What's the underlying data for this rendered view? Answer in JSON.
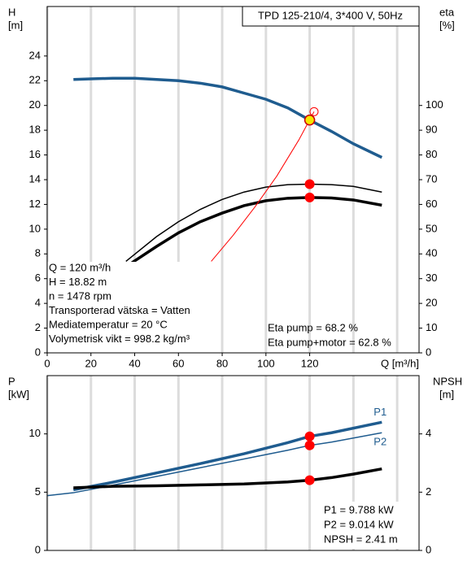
{
  "chart_data": [
    {
      "type": "line",
      "title": "TPD 125-210/4, 3*400 V, 50Hz",
      "y_label": [
        "H",
        "[m]"
      ],
      "y2_label": [
        "eta",
        "[%]"
      ],
      "x_label": "Q [m³/h]",
      "xlim": [
        0,
        170
      ],
      "xticks": [
        0,
        20,
        40,
        60,
        80,
        100,
        120
      ],
      "xgrid": [
        0,
        20,
        40,
        60,
        80,
        100,
        120,
        140,
        160
      ],
      "ylim": [
        0,
        28
      ],
      "yticks": [
        0,
        2,
        4,
        6,
        8,
        10,
        12,
        14,
        16,
        18,
        20,
        22,
        24
      ],
      "y2lim": [
        0,
        140
      ],
      "y2ticks": [
        0,
        10,
        20,
        30,
        40,
        50,
        60,
        70,
        80,
        90,
        100
      ],
      "duty_x": 120,
      "series": [
        {
          "color": "#1f5c8f",
          "width": 3.5,
          "x": [
            12,
            20,
            30,
            40,
            50,
            60,
            70,
            80,
            90,
            100,
            110,
            120,
            130,
            140,
            153
          ],
          "values": [
            22.1,
            22.15,
            22.2,
            22.2,
            22.1,
            22.0,
            21.8,
            21.5,
            21.0,
            20.5,
            19.8,
            18.82,
            17.9,
            16.9,
            15.8
          ],
          "duty": 18.82,
          "duty_color": "#f5e600"
        },
        {
          "color": "#000000",
          "width": 1.5,
          "axis": "y2",
          "x": [
            36,
            50,
            60,
            70,
            80,
            90,
            100,
            110,
            120,
            130,
            140,
            153
          ],
          "values": [
            37,
            47,
            53,
            58,
            62,
            65,
            67,
            68,
            68.2,
            68,
            67.3,
            65
          ],
          "duty": 68.2,
          "duty_color": "#ff0000"
        },
        {
          "color": "#000000",
          "width": 3.5,
          "axis": "y2",
          "x": [
            38,
            50,
            60,
            70,
            80,
            90,
            100,
            110,
            120,
            130,
            140,
            153
          ],
          "values": [
            36,
            43,
            48.5,
            53,
            56.5,
            59.5,
            61.5,
            62.5,
            62.8,
            62.6,
            61.8,
            59.7
          ],
          "duty": 62.8,
          "duty_color": "#ff0000"
        },
        {
          "color": "#ff0000",
          "width": 1,
          "x": [
            75,
            85,
            95,
            105,
            115,
            122
          ],
          "values": [
            7.4,
            9.5,
            11.8,
            14.3,
            17.2,
            19.5
          ],
          "end_marker": true
        }
      ],
      "info": [
        "Q = 120 m³/h",
        "H = 18.82 m",
        "n = 1478 rpm",
        "Transporterad vätska = Vatten",
        "Mediatemperatur = 20 °C",
        "Volymetrisk vikt = 998.2 kg/m³"
      ],
      "eta_info": [
        "Eta pump = 68.2 %",
        "Eta pump+motor = 62.8 %"
      ]
    },
    {
      "type": "line",
      "y_label": [
        "P",
        "[kW]"
      ],
      "y2_label": [
        "NPSH",
        "[m]"
      ],
      "xlim": [
        0,
        170
      ],
      "xgrid": [
        0,
        20,
        40,
        60,
        80,
        100,
        120,
        140,
        160
      ],
      "ylim": [
        0,
        15
      ],
      "yticks": [
        0,
        5,
        10
      ],
      "y2lim": [
        0,
        6
      ],
      "y2ticks": [
        0,
        2,
        4
      ],
      "duty_x": 120,
      "series": [
        {
          "name": "P1",
          "color": "#1f5c8f",
          "width": 3.5,
          "x": [
            12,
            30,
            50,
            70,
            90,
            110,
            120,
            130,
            153
          ],
          "values": [
            5.2,
            5.85,
            6.65,
            7.45,
            8.3,
            9.25,
            9.788,
            10.1,
            11.0
          ],
          "duty": 9.788,
          "duty_color": "#ff0000"
        },
        {
          "name": "P2",
          "color": "#1f5c8f",
          "width": 1.5,
          "x": [
            0,
            12,
            30,
            50,
            70,
            90,
            110,
            120,
            130,
            153
          ],
          "values": [
            4.7,
            4.95,
            5.6,
            6.35,
            7.1,
            7.85,
            8.6,
            9.014,
            9.3,
            10.1
          ],
          "duty": 9.014,
          "duty_color": "#ff0000"
        },
        {
          "color": "#000000",
          "width": 3.5,
          "axis": "y2",
          "x": [
            12,
            30,
            50,
            70,
            90,
            110,
            120,
            130,
            140,
            153
          ],
          "values": [
            2.15,
            2.2,
            2.22,
            2.25,
            2.28,
            2.35,
            2.41,
            2.5,
            2.62,
            2.8
          ],
          "duty": 2.41,
          "duty_color": "#ff0000"
        }
      ],
      "info": [
        "P1 = 9.788 kW",
        "P2 = 9.014 kW",
        "NPSH = 2.41 m"
      ]
    }
  ]
}
